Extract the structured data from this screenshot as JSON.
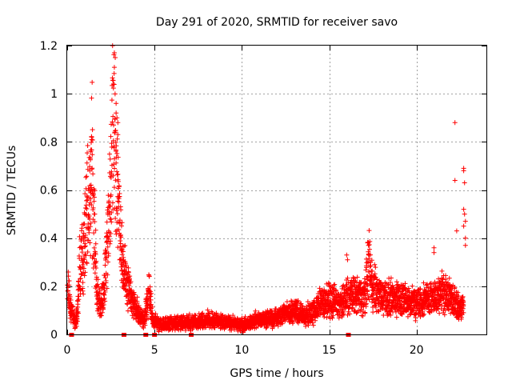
{
  "chart_data": {
    "type": "scatter",
    "title": "Day 291 of 2020, SRMTID for receiver savo",
    "xlabel": "GPS time / hours",
    "ylabel": "SRMTID / TECUs",
    "xlim": [
      0,
      24
    ],
    "ylim": [
      0,
      1.2
    ],
    "xticks": [
      0,
      5,
      10,
      15,
      20
    ],
    "yticks": [
      0,
      0.2,
      0.4,
      0.6,
      0.8,
      1,
      1.2
    ],
    "xtick_labels": [
      "0",
      "5",
      "10",
      "15",
      "20"
    ],
    "ytick_labels": [
      "0",
      "0.2",
      "0.4",
      "0.6",
      "0.8",
      "1",
      "1.2"
    ],
    "grid": true,
    "marker": "+",
    "series": [
      {
        "name": "SRMTID",
        "color": "#ff0000",
        "anchor_curve": [
          [
            0.0,
            0.22
          ],
          [
            0.1,
            0.16
          ],
          [
            0.2,
            0.12
          ],
          [
            0.35,
            0.07
          ],
          [
            0.5,
            0.04
          ],
          [
            0.6,
            0.12
          ],
          [
            0.7,
            0.26
          ],
          [
            0.85,
            0.32
          ],
          [
            1.0,
            0.38
          ],
          [
            1.1,
            0.52
          ],
          [
            1.3,
            0.6
          ],
          [
            1.4,
            0.72
          ],
          [
            1.5,
            0.55
          ],
          [
            1.6,
            0.35
          ],
          [
            1.7,
            0.18
          ],
          [
            1.9,
            0.12
          ],
          [
            2.1,
            0.16
          ],
          [
            2.3,
            0.4
          ],
          [
            2.5,
            0.62
          ],
          [
            2.55,
            0.85
          ],
          [
            2.6,
            1.0
          ],
          [
            2.7,
            0.8
          ],
          [
            2.8,
            0.6
          ],
          [
            2.9,
            0.5
          ],
          [
            3.0,
            0.45
          ],
          [
            3.1,
            0.35
          ],
          [
            3.3,
            0.25
          ],
          [
            3.5,
            0.2
          ],
          [
            3.7,
            0.15
          ],
          [
            3.9,
            0.12
          ],
          [
            4.1,
            0.08
          ],
          [
            4.4,
            0.06
          ],
          [
            4.7,
            0.18
          ],
          [
            4.9,
            0.06
          ],
          [
            5.3,
            0.04
          ],
          [
            6.0,
            0.05
          ],
          [
            7.0,
            0.05
          ],
          [
            8.0,
            0.06
          ],
          [
            9.0,
            0.05
          ],
          [
            10.0,
            0.04
          ],
          [
            11.0,
            0.06
          ],
          [
            12.0,
            0.07
          ],
          [
            12.5,
            0.09
          ],
          [
            13.0,
            0.1
          ],
          [
            13.5,
            0.08
          ],
          [
            14.0,
            0.09
          ],
          [
            14.5,
            0.13
          ],
          [
            15.0,
            0.15
          ],
          [
            15.5,
            0.13
          ],
          [
            16.0,
            0.15
          ],
          [
            16.5,
            0.16
          ],
          [
            17.0,
            0.15
          ],
          [
            17.3,
            0.3
          ],
          [
            17.5,
            0.2
          ],
          [
            18.0,
            0.15
          ],
          [
            19.0,
            0.15
          ],
          [
            20.0,
            0.13
          ],
          [
            20.5,
            0.14
          ],
          [
            21.0,
            0.15
          ],
          [
            21.5,
            0.18
          ],
          [
            22.0,
            0.15
          ],
          [
            22.3,
            0.12
          ],
          [
            22.5,
            0.1
          ],
          [
            22.7,
            0.12
          ]
        ],
        "outliers": [
          [
            2.7,
            1.17
          ],
          [
            2.75,
            1.15
          ],
          [
            2.7,
            1.11
          ],
          [
            2.65,
            1.04
          ],
          [
            2.8,
            0.96
          ],
          [
            2.8,
            0.92
          ],
          [
            2.85,
            0.9
          ],
          [
            2.9,
            0.88
          ],
          [
            2.9,
            0.83
          ],
          [
            1.4,
            0.82
          ],
          [
            1.4,
            0.81
          ],
          [
            1.35,
            0.76
          ],
          [
            22.2,
            0.88
          ],
          [
            22.2,
            0.64
          ],
          [
            22.3,
            0.43
          ],
          [
            22.7,
            0.69
          ],
          [
            22.7,
            0.68
          ],
          [
            22.75,
            0.63
          ],
          [
            22.7,
            0.52
          ],
          [
            22.75,
            0.5
          ],
          [
            22.8,
            0.47
          ],
          [
            22.7,
            0.45
          ],
          [
            22.8,
            0.4
          ],
          [
            22.8,
            0.37
          ],
          [
            17.2,
            0.38
          ],
          [
            17.25,
            0.37
          ],
          [
            16.0,
            0.33
          ],
          [
            16.05,
            0.31
          ],
          [
            21.0,
            0.36
          ],
          [
            21.0,
            0.34
          ]
        ]
      }
    ],
    "markers_on_axis": [
      0.25,
      3.25,
      4.5,
      5.0,
      7.1,
      16.1
    ]
  }
}
